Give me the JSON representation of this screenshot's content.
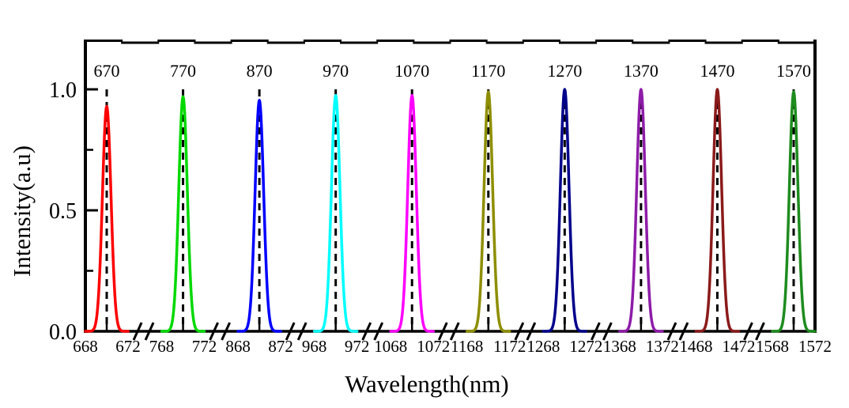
{
  "chart_data": {
    "type": "line",
    "title": "",
    "xlabel": "Wavelength(nm)",
    "ylabel": "Intensity(a.u)",
    "ylim": [
      0.0,
      1.2
    ],
    "grid": false,
    "legend": false,
    "broken_x_axis": true,
    "panel_span_nm": 4,
    "sigma_nm": 0.4,
    "center_guide_style": "dashed",
    "axis_color": "#000000",
    "background": "#ffffff",
    "yticks": [
      {
        "value": 0.0,
        "label": "0.0"
      },
      {
        "value": 0.5,
        "label": "0.5"
      },
      {
        "value": 1.0,
        "label": "1.0"
      }
    ],
    "yticks_minor": [
      0.25,
      0.75
    ],
    "panels": [
      {
        "center": 670,
        "label": "670",
        "tick_values": [
          668,
          672
        ],
        "tick_labels": [
          "668",
          "672"
        ],
        "color": "#fe0000",
        "peak_height": 0.93
      },
      {
        "center": 770,
        "label": "770",
        "tick_values": [
          768,
          772
        ],
        "tick_labels": [
          "768",
          "772"
        ],
        "color": "#00d900",
        "peak_height": 0.97
      },
      {
        "center": 870,
        "label": "870",
        "tick_values": [
          868,
          872
        ],
        "tick_labels": [
          "868",
          "872"
        ],
        "color": "#0000fe",
        "peak_height": 0.955
      },
      {
        "center": 970,
        "label": "970",
        "tick_values": [
          968,
          972
        ],
        "tick_labels": [
          "968",
          "972"
        ],
        "color": "#00fefe",
        "peak_height": 0.975
      },
      {
        "center": 1070,
        "label": "1070",
        "tick_values": [
          1068,
          1072
        ],
        "tick_labels": [
          "1068",
          "1072"
        ],
        "color": "#fe00fe",
        "peak_height": 0.975
      },
      {
        "center": 1170,
        "label": "1170",
        "tick_values": [
          1168,
          1172
        ],
        "tick_labels": [
          "1168",
          "1172"
        ],
        "color": "#8e8e00",
        "peak_height": 0.99
      },
      {
        "center": 1270,
        "label": "1270",
        "tick_values": [
          1268,
          1272
        ],
        "tick_labels": [
          "1268",
          "1272"
        ],
        "color": "#00008b",
        "peak_height": 1.0
      },
      {
        "center": 1370,
        "label": "1370",
        "tick_values": [
          1368,
          1372
        ],
        "tick_labels": [
          "1368",
          "1372"
        ],
        "color": "#8e1ca8",
        "peak_height": 1.0
      },
      {
        "center": 1470,
        "label": "1470",
        "tick_values": [
          1468,
          1472
        ],
        "tick_labels": [
          "1468",
          "1472"
        ],
        "color": "#8b1a1a",
        "peak_height": 1.0
      },
      {
        "center": 1570,
        "label": "1570",
        "tick_values": [
          1568,
          1572
        ],
        "tick_labels": [
          "1568",
          "1572"
        ],
        "color": "#1e8c1e",
        "peak_height": 0.99
      }
    ]
  }
}
